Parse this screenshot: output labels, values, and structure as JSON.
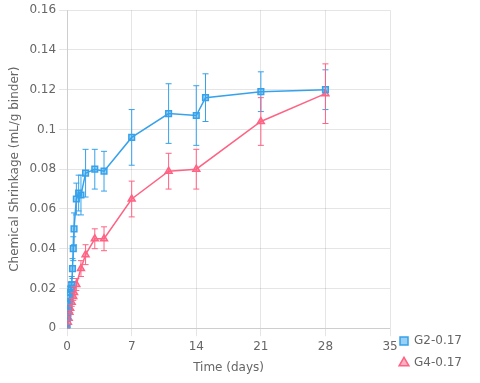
{
  "chart_data": {
    "type": "line",
    "xlabel": "Time (days)",
    "ylabel": "Chemical Shrinkage (mL/g binder)",
    "series": [
      {
        "name": "G2-0.17",
        "marker": "square",
        "x": [
          0,
          0.042,
          0.083,
          0.125,
          0.167,
          0.208,
          0.25,
          0.333,
          0.417,
          0.5,
          0.583,
          0.667,
          0.75,
          1.0,
          1.25,
          1.5,
          2.0,
          3.0,
          4.0,
          7.0,
          11.0,
          14.0,
          15.0,
          21.0,
          28.0
        ],
        "values": [
          0.0,
          0.005,
          0.008,
          0.01,
          0.012,
          0.013,
          0.015,
          0.018,
          0.02,
          0.022,
          0.03,
          0.04,
          0.05,
          0.065,
          0.068,
          0.067,
          0.078,
          0.08,
          0.079,
          0.096,
          0.108,
          0.107,
          0.116,
          0.119,
          0.12
        ],
        "yerr": [
          0.0,
          0.001,
          0.001,
          0.002,
          0.002,
          0.002,
          0.003,
          0.003,
          0.003,
          0.004,
          0.005,
          0.006,
          0.008,
          0.008,
          0.009,
          0.01,
          0.012,
          0.01,
          0.01,
          0.014,
          0.015,
          0.015,
          0.012,
          0.01,
          0.01
        ]
      },
      {
        "name": "G4-0.17",
        "marker": "triangle",
        "x": [
          0,
          0.083,
          0.167,
          0.25,
          0.333,
          0.5,
          0.667,
          0.75,
          1.0,
          1.5,
          2.0,
          3.0,
          4.0,
          7.0,
          11.0,
          14.0,
          21.0,
          28.0
        ],
        "values": [
          0.0,
          0.003,
          0.005,
          0.008,
          0.01,
          0.013,
          0.016,
          0.018,
          0.022,
          0.03,
          0.037,
          0.045,
          0.045,
          0.065,
          0.079,
          0.08,
          0.104,
          0.118
        ],
        "yerr": [
          0.0,
          0.001,
          0.001,
          0.001,
          0.002,
          0.002,
          0.002,
          0.003,
          0.003,
          0.004,
          0.005,
          0.005,
          0.006,
          0.009,
          0.009,
          0.01,
          0.012,
          0.015
        ]
      }
    ],
    "xlim": [
      0,
      35
    ],
    "xticks": [
      0,
      7,
      14,
      21,
      28,
      35
    ],
    "ylim": [
      0,
      0.16
    ],
    "yticks": [
      0,
      0.02,
      0.04,
      0.06,
      0.08,
      0.1,
      0.12,
      0.14,
      0.16
    ],
    "grid": true,
    "legend": "lower right"
  }
}
